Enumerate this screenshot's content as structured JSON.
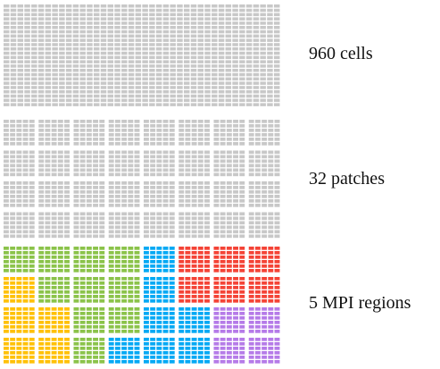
{
  "labels": {
    "cells": "960 cells",
    "patches": "32 patches",
    "mpi": "5 MPI regions"
  },
  "grid": {
    "cols": 40,
    "rows": 24,
    "patch_cols": 8,
    "patch_rows": 4,
    "cell_color": "#c8c8c8"
  },
  "regions": {
    "colors": {
      "green": "#8bc34a",
      "yellow": "#ffc107",
      "blue": "#03a9f4",
      "red": "#f44336",
      "purple": "#b57be8"
    },
    "patch_map": [
      [
        "green",
        "green",
        "green",
        "green",
        "blue",
        "red",
        "red",
        "red"
      ],
      [
        "yellow",
        "green",
        "green",
        "green",
        "blue",
        "red",
        "red",
        "red"
      ],
      [
        "yellow",
        "yellow",
        "green",
        "green",
        "blue",
        "blue",
        "purple",
        "purple"
      ],
      [
        "yellow",
        "yellow",
        "green",
        "blue",
        "blue",
        "blue",
        "purple",
        "purple"
      ]
    ]
  }
}
